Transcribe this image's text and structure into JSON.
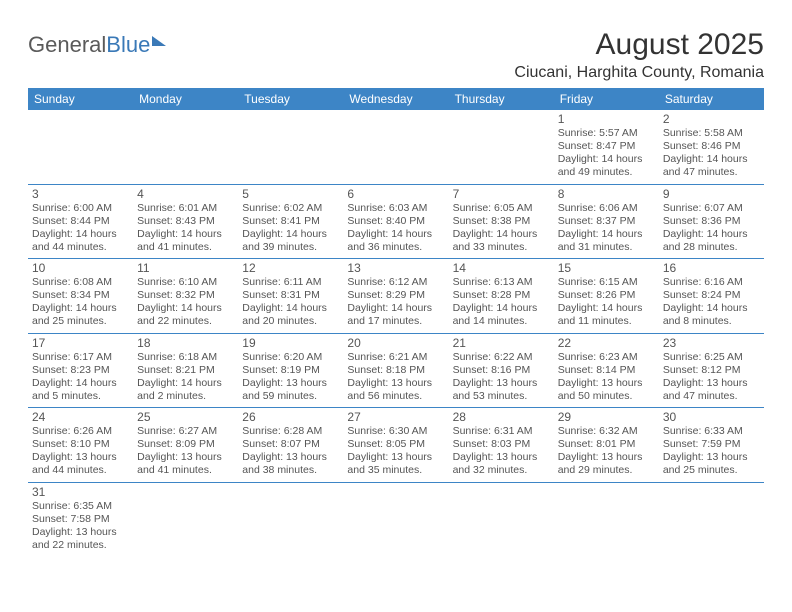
{
  "logo": {
    "text_general": "General",
    "text_blue": "Blue"
  },
  "header": {
    "month_title": "August 2025",
    "location": "Ciucani, Harghita County, Romania"
  },
  "columns": [
    "Sunday",
    "Monday",
    "Tuesday",
    "Wednesday",
    "Thursday",
    "Friday",
    "Saturday"
  ],
  "colors": {
    "header_bg": "#3d85c6",
    "header_fg": "#ffffff",
    "cell_border": "#3d85c6",
    "text": "#555555",
    "title_text": "#333333",
    "logo_gray": "#5a5a5a",
    "logo_blue": "#3a79b7",
    "background": "#ffffff"
  },
  "typography": {
    "month_title_size_pt": 22,
    "location_size_pt": 12,
    "weekday_size_pt": 9,
    "daynum_size_pt": 9,
    "info_size_pt": 8
  },
  "layout": {
    "first_weekday_index": 5,
    "num_days": 31,
    "columns_per_row": 7
  },
  "labels": {
    "sunrise": "Sunrise:",
    "sunset": "Sunset:",
    "daylight": "Daylight:"
  },
  "days": [
    {
      "n": 1,
      "sunrise": "5:57 AM",
      "sunset": "8:47 PM",
      "daylight": "14 hours and 49 minutes."
    },
    {
      "n": 2,
      "sunrise": "5:58 AM",
      "sunset": "8:46 PM",
      "daylight": "14 hours and 47 minutes."
    },
    {
      "n": 3,
      "sunrise": "6:00 AM",
      "sunset": "8:44 PM",
      "daylight": "14 hours and 44 minutes."
    },
    {
      "n": 4,
      "sunrise": "6:01 AM",
      "sunset": "8:43 PM",
      "daylight": "14 hours and 41 minutes."
    },
    {
      "n": 5,
      "sunrise": "6:02 AM",
      "sunset": "8:41 PM",
      "daylight": "14 hours and 39 minutes."
    },
    {
      "n": 6,
      "sunrise": "6:03 AM",
      "sunset": "8:40 PM",
      "daylight": "14 hours and 36 minutes."
    },
    {
      "n": 7,
      "sunrise": "6:05 AM",
      "sunset": "8:38 PM",
      "daylight": "14 hours and 33 minutes."
    },
    {
      "n": 8,
      "sunrise": "6:06 AM",
      "sunset": "8:37 PM",
      "daylight": "14 hours and 31 minutes."
    },
    {
      "n": 9,
      "sunrise": "6:07 AM",
      "sunset": "8:36 PM",
      "daylight": "14 hours and 28 minutes."
    },
    {
      "n": 10,
      "sunrise": "6:08 AM",
      "sunset": "8:34 PM",
      "daylight": "14 hours and 25 minutes."
    },
    {
      "n": 11,
      "sunrise": "6:10 AM",
      "sunset": "8:32 PM",
      "daylight": "14 hours and 22 minutes."
    },
    {
      "n": 12,
      "sunrise": "6:11 AM",
      "sunset": "8:31 PM",
      "daylight": "14 hours and 20 minutes."
    },
    {
      "n": 13,
      "sunrise": "6:12 AM",
      "sunset": "8:29 PM",
      "daylight": "14 hours and 17 minutes."
    },
    {
      "n": 14,
      "sunrise": "6:13 AM",
      "sunset": "8:28 PM",
      "daylight": "14 hours and 14 minutes."
    },
    {
      "n": 15,
      "sunrise": "6:15 AM",
      "sunset": "8:26 PM",
      "daylight": "14 hours and 11 minutes."
    },
    {
      "n": 16,
      "sunrise": "6:16 AM",
      "sunset": "8:24 PM",
      "daylight": "14 hours and 8 minutes."
    },
    {
      "n": 17,
      "sunrise": "6:17 AM",
      "sunset": "8:23 PM",
      "daylight": "14 hours and 5 minutes."
    },
    {
      "n": 18,
      "sunrise": "6:18 AM",
      "sunset": "8:21 PM",
      "daylight": "14 hours and 2 minutes."
    },
    {
      "n": 19,
      "sunrise": "6:20 AM",
      "sunset": "8:19 PM",
      "daylight": "13 hours and 59 minutes."
    },
    {
      "n": 20,
      "sunrise": "6:21 AM",
      "sunset": "8:18 PM",
      "daylight": "13 hours and 56 minutes."
    },
    {
      "n": 21,
      "sunrise": "6:22 AM",
      "sunset": "8:16 PM",
      "daylight": "13 hours and 53 minutes."
    },
    {
      "n": 22,
      "sunrise": "6:23 AM",
      "sunset": "8:14 PM",
      "daylight": "13 hours and 50 minutes."
    },
    {
      "n": 23,
      "sunrise": "6:25 AM",
      "sunset": "8:12 PM",
      "daylight": "13 hours and 47 minutes."
    },
    {
      "n": 24,
      "sunrise": "6:26 AM",
      "sunset": "8:10 PM",
      "daylight": "13 hours and 44 minutes."
    },
    {
      "n": 25,
      "sunrise": "6:27 AM",
      "sunset": "8:09 PM",
      "daylight": "13 hours and 41 minutes."
    },
    {
      "n": 26,
      "sunrise": "6:28 AM",
      "sunset": "8:07 PM",
      "daylight": "13 hours and 38 minutes."
    },
    {
      "n": 27,
      "sunrise": "6:30 AM",
      "sunset": "8:05 PM",
      "daylight": "13 hours and 35 minutes."
    },
    {
      "n": 28,
      "sunrise": "6:31 AM",
      "sunset": "8:03 PM",
      "daylight": "13 hours and 32 minutes."
    },
    {
      "n": 29,
      "sunrise": "6:32 AM",
      "sunset": "8:01 PM",
      "daylight": "13 hours and 29 minutes."
    },
    {
      "n": 30,
      "sunrise": "6:33 AM",
      "sunset": "7:59 PM",
      "daylight": "13 hours and 25 minutes."
    },
    {
      "n": 31,
      "sunrise": "6:35 AM",
      "sunset": "7:58 PM",
      "daylight": "13 hours and 22 minutes."
    }
  ]
}
